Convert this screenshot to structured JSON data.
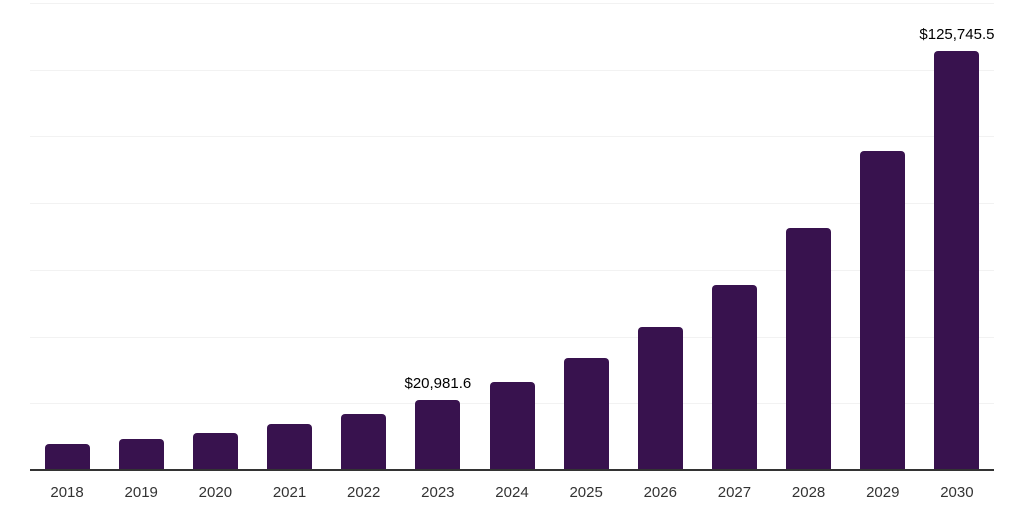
{
  "chart_data": {
    "type": "bar",
    "title": "",
    "xlabel": "",
    "ylabel": "",
    "categories": [
      "2018",
      "2019",
      "2020",
      "2021",
      "2022",
      "2023",
      "2024",
      "2025",
      "2026",
      "2027",
      "2028",
      "2029",
      "2030"
    ],
    "values": [
      7900,
      9200,
      11200,
      13700,
      16900,
      20981.6,
      26300,
      33500,
      42800,
      55500,
      72500,
      95600,
      125745.5
    ],
    "data_labels": [
      {
        "index": 5,
        "text": "$20,981.6"
      },
      {
        "index": 12,
        "text": "$125,745.5"
      }
    ],
    "ylim": [
      0,
      140000
    ],
    "grid": "horizontal",
    "gridline_count": 8,
    "legend": "none",
    "colors": {
      "bar": "#38124e",
      "gridline": "#f2f2f2",
      "axis_line": "#333333",
      "tick_label": "#333333",
      "data_label": "#000000",
      "background": "#ffffff"
    }
  }
}
